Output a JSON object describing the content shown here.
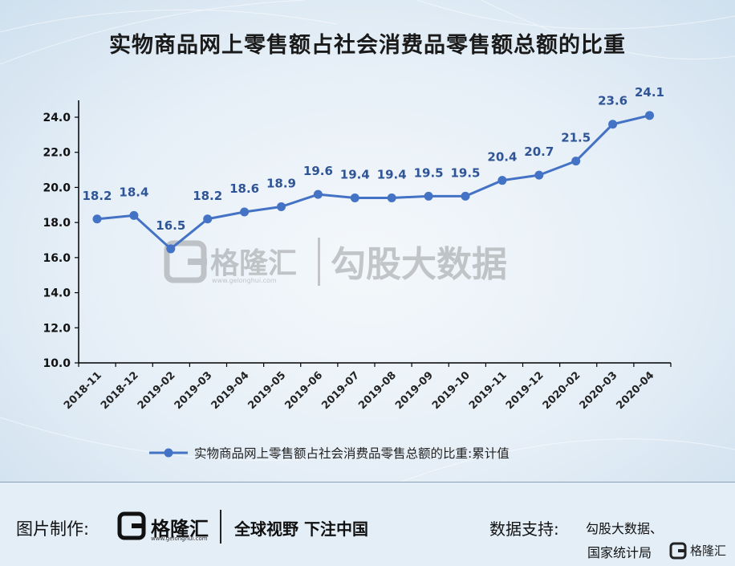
{
  "page": {
    "title": "实物商品网上零售额占社会消费品零售额总额的比重"
  },
  "watermark": {
    "brand": "格隆汇",
    "url": "www.gelonghui.com",
    "partner": "勾股大数据"
  },
  "footer": {
    "made_by_label": "图片制作:",
    "brand_name": "格隆汇",
    "brand_url": "www.gelonghui.com",
    "slogan": "全球视野 下注中国",
    "support_label": "数据支持:",
    "support_line1": "勾股大数据、",
    "support_line2": "国家统计局",
    "corner_brand": "格隆汇"
  },
  "chart_data": {
    "type": "line",
    "title": "实物商品网上零售额占社会消费品零售额总额的比重",
    "xlabel": "",
    "ylabel": "",
    "categories": [
      "2018-11",
      "2018-12",
      "2019-02",
      "2019-03",
      "2019-04",
      "2019-05",
      "2019-06",
      "2019-07",
      "2019-08",
      "2019-09",
      "2019-10",
      "2019-11",
      "2019-12",
      "2020-02",
      "2020-03",
      "2020-04"
    ],
    "series": [
      {
        "name": "实物商品网上零售额占社会消费品零售总额的比重:累计值",
        "values": [
          18.2,
          18.4,
          16.5,
          18.2,
          18.6,
          18.9,
          19.6,
          19.4,
          19.4,
          19.5,
          19.5,
          20.4,
          20.7,
          21.5,
          23.6,
          24.1
        ],
        "color": "#4472c4"
      }
    ],
    "ylim": [
      10,
      24
    ],
    "yticks": [
      "10.0",
      "12.0",
      "14.0",
      "16.0",
      "18.0",
      "20.0",
      "22.0",
      "24.0"
    ],
    "grid": false,
    "data_labels": true,
    "legend": "bottom-center"
  }
}
